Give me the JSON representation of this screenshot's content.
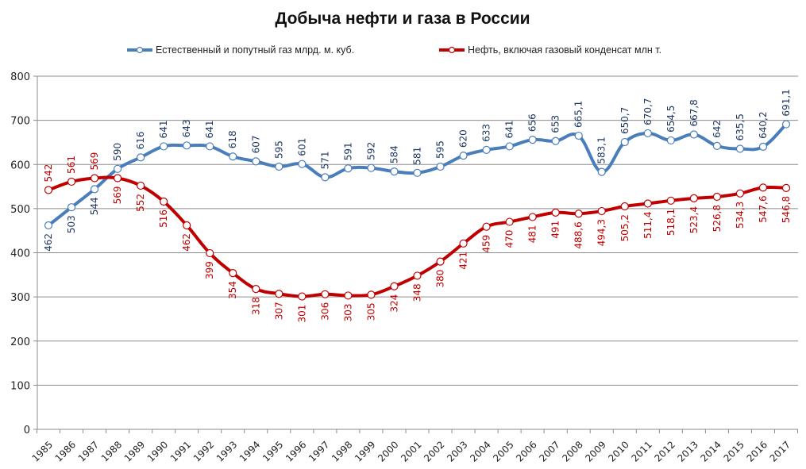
{
  "chart_data": {
    "type": "line",
    "title": "Добыча нефти и газа в России",
    "xlabel": "",
    "ylabel": "",
    "ylim": [
      0,
      800
    ],
    "yticks": [
      0,
      100,
      200,
      300,
      400,
      500,
      600,
      700,
      800
    ],
    "grid": true,
    "legend_position": "top",
    "categories": [
      "1985",
      "1986",
      "1987",
      "1988",
      "1989",
      "1990",
      "1991",
      "1992",
      "1993",
      "1994",
      "1995",
      "1996",
      "1997",
      "1998",
      "1999",
      "2000",
      "2001",
      "2002",
      "2003",
      "2004",
      "2005",
      "2006",
      "2007",
      "2008",
      "2009",
      "2010",
      "2011",
      "2012",
      "2013",
      "2014",
      "2015",
      "2016",
      "2017"
    ],
    "series": [
      {
        "name": "Естественный  и попутный газ млрд. м. куб.",
        "color": "#4a7ebb",
        "label_color": "#1f3864",
        "values": [
          462,
          503,
          544,
          590,
          616,
          641,
          643,
          641,
          618,
          607,
          595,
          601,
          571,
          591,
          592,
          584,
          581,
          595,
          620,
          633,
          641,
          656,
          653,
          665.1,
          583.1,
          650.7,
          670.7,
          654.5,
          667.8,
          642,
          635.5,
          640.2,
          691.1
        ],
        "labels": [
          "462",
          "503",
          "544",
          "590",
          "616",
          "641",
          "643",
          "641",
          "618",
          "607",
          "595",
          "601",
          "571",
          "591",
          "592",
          "584",
          "581",
          "595",
          "620",
          "633",
          "641",
          "656",
          "653",
          "665,1",
          "583,1",
          "650,7",
          "670,7",
          "654,5",
          "667,8",
          "642",
          "635,5",
          "640,2",
          "691,1"
        ]
      },
      {
        "name": "Нефть,  включая газовый конденсат млн т.",
        "color": "#c00000",
        "label_color": "#c00000",
        "values": [
          542,
          561,
          569,
          569,
          552,
          516,
          462,
          399,
          354,
          318,
          307,
          301,
          306,
          303,
          305,
          324,
          348,
          380,
          421,
          459,
          470,
          481,
          491,
          488.6,
          494.3,
          505.2,
          511.4,
          518.1,
          523.4,
          526.8,
          534.3,
          547.6,
          546.8
        ],
        "labels": [
          "542",
          "561",
          "569",
          "569",
          "552",
          "516",
          "462",
          "399",
          "354",
          "318",
          "307",
          "301",
          "306",
          "303",
          "305",
          "324",
          "348",
          "380",
          "421",
          "459",
          "470",
          "481",
          "491",
          "488,6",
          "494,3",
          "505,2",
          "511,4",
          "518,1",
          "523,4",
          "526,8",
          "534,3",
          "547,6",
          "546,8"
        ]
      }
    ]
  }
}
